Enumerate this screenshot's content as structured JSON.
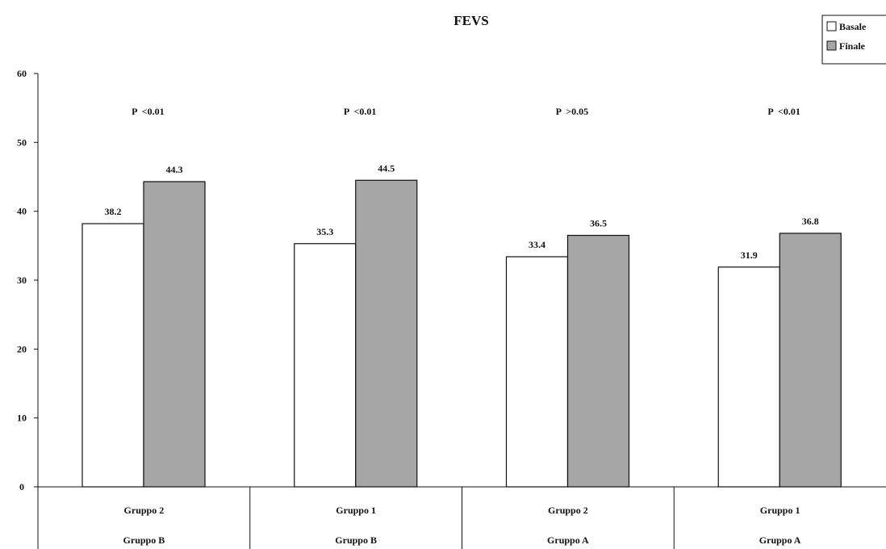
{
  "chart_data": {
    "type": "bar",
    "title": "FEVS",
    "xlabel": "",
    "ylabel": "",
    "ylim": [
      0,
      60
    ],
    "yticks": [
      0,
      10,
      20,
      30,
      40,
      50,
      60
    ],
    "grid": false,
    "legend_position": "top-right",
    "categories": [
      {
        "line1": "Gruppo 2",
        "line2": "Gruppo B"
      },
      {
        "line1": "Gruppo 1",
        "line2": "Gruppo B"
      },
      {
        "line1": "Gruppo 2",
        "line2": "Gruppo A"
      },
      {
        "line1": "Gruppo 1",
        "line2": "Gruppo A"
      }
    ],
    "series": [
      {
        "name": "Basale",
        "values": [
          38.2,
          35.3,
          33.4,
          31.9
        ],
        "labels": [
          "38.2",
          "35.3",
          "33.4",
          "31.9"
        ],
        "color": "#ffffff"
      },
      {
        "name": "Finale",
        "values": [
          44.3,
          44.5,
          36.5,
          36.8
        ],
        "labels": [
          "44.3",
          "44.5",
          "36.5",
          "36.8"
        ],
        "color": "#a6a6a6"
      }
    ],
    "annotations": [
      "P  <0.01",
      "P  <0.01",
      "P  >0.05",
      "P  <0.01"
    ]
  }
}
